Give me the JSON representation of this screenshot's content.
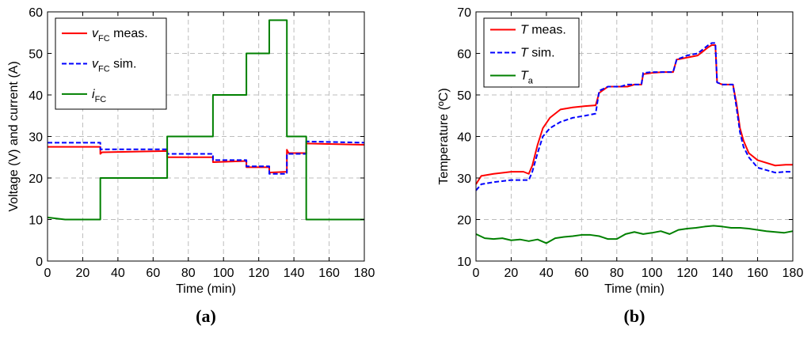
{
  "chart_data": [
    {
      "type": "line",
      "panel_label": "(a)",
      "xlabel": "Time (min)",
      "ylabel": "Voltage (V)  and current (A)",
      "xlim": [
        0,
        180
      ],
      "ylim": [
        0,
        60
      ],
      "xticks": [
        0,
        20,
        40,
        60,
        80,
        100,
        120,
        140,
        160,
        180
      ],
      "yticks": [
        0,
        10,
        20,
        30,
        40,
        50,
        60
      ],
      "grid": true,
      "legend_position": "top-left",
      "series": [
        {
          "name": "vFC meas.",
          "legend_main": "v",
          "legend_sub": "FC",
          "legend_suffix": " meas.",
          "italic_main": true,
          "color": "#ff0000",
          "dash": "solid",
          "x": [
            0,
            30,
            30,
            31,
            68,
            68,
            94,
            94,
            113,
            113,
            126,
            126,
            136,
            136,
            137,
            137,
            147,
            147,
            180
          ],
          "y": [
            27.5,
            27.5,
            25.8,
            26.2,
            26.5,
            25.0,
            25.0,
            23.8,
            24.1,
            22.6,
            22.6,
            21.3,
            21.5,
            26.8,
            26.0,
            26.0,
            26.0,
            28.3,
            28.0
          ]
        },
        {
          "name": "vFC sim.",
          "legend_main": "v",
          "legend_sub": "FC",
          "legend_suffix": " sim.",
          "italic_main": true,
          "color": "#0000ff",
          "dash": "dashed",
          "x": [
            0,
            30,
            30,
            68,
            68,
            94,
            94,
            113,
            113,
            126,
            126,
            136,
            136,
            147,
            147,
            180
          ],
          "y": [
            28.5,
            28.5,
            26.9,
            26.9,
            25.8,
            25.8,
            24.3,
            24.3,
            22.8,
            22.8,
            21.0,
            21.0,
            25.8,
            25.8,
            28.8,
            28.5
          ]
        },
        {
          "name": "iFC",
          "legend_main": "i",
          "legend_sub": "FC",
          "legend_suffix": "",
          "italic_main": true,
          "color": "#008000",
          "dash": "solid",
          "x": [
            0,
            10,
            30,
            30,
            68,
            68,
            94,
            94,
            113,
            113,
            126,
            126,
            136,
            136,
            147,
            147,
            180
          ],
          "y": [
            10.5,
            10,
            10,
            20,
            20,
            30,
            30,
            40,
            40,
            50,
            50,
            58,
            58,
            30,
            30,
            10,
            10
          ]
        }
      ]
    },
    {
      "type": "line",
      "panel_label": "(b)",
      "xlabel": "Time (min)",
      "ylabel": "Temperature (ºC)",
      "xlim": [
        0,
        180
      ],
      "ylim": [
        10,
        70
      ],
      "xticks": [
        0,
        20,
        40,
        60,
        80,
        100,
        120,
        140,
        160,
        180
      ],
      "yticks": [
        10,
        20,
        30,
        40,
        50,
        60,
        70
      ],
      "grid": true,
      "legend_position": "top-left",
      "series": [
        {
          "name": "T meas.",
          "legend_main": "T",
          "legend_sub": "",
          "legend_suffix": " meas.",
          "italic_main": true,
          "color": "#ff0000",
          "dash": "solid",
          "x": [
            0,
            3,
            10,
            20,
            27,
            30,
            32,
            35,
            38,
            42,
            48,
            55,
            62,
            68,
            70,
            75,
            82,
            86,
            90,
            94,
            95,
            100,
            106,
            112,
            114,
            120,
            126,
            132,
            134,
            136,
            137,
            140,
            144,
            146,
            148,
            150,
            152,
            155,
            160,
            170,
            176,
            180
          ],
          "y": [
            28.5,
            30.5,
            31,
            31.5,
            31.5,
            31,
            33,
            38,
            42,
            44.5,
            46.5,
            47,
            47.3,
            47.5,
            50.5,
            52,
            52,
            52,
            52.5,
            52.5,
            55,
            55.3,
            55.5,
            55.5,
            58.5,
            59,
            59.5,
            61.5,
            62,
            62,
            53,
            52.5,
            52.5,
            52.5,
            48,
            42,
            39,
            36,
            34.3,
            33,
            33.2,
            33.2
          ]
        },
        {
          "name": "T sim.",
          "legend_main": "T",
          "legend_sub": "",
          "legend_suffix": " sim.",
          "italic_main": true,
          "color": "#0000ff",
          "dash": "dashed",
          "x": [
            0,
            3,
            10,
            20,
            27,
            30,
            32,
            35,
            38,
            42,
            48,
            55,
            62,
            68,
            70,
            75,
            82,
            86,
            90,
            94,
            95,
            100,
            106,
            112,
            114,
            120,
            126,
            132,
            134,
            136,
            137,
            140,
            144,
            146,
            148,
            150,
            152,
            155,
            160,
            170,
            176,
            180
          ],
          "y": [
            27,
            28.5,
            29,
            29.5,
            29.5,
            29.5,
            31.5,
            36,
            40,
            42,
            43.5,
            44.5,
            45,
            45.5,
            51,
            52,
            52,
            52.5,
            52.5,
            52.5,
            55.3,
            55.5,
            55.5,
            55.5,
            58.5,
            59.5,
            60,
            62,
            62.5,
            62.5,
            53,
            52.5,
            52.5,
            52.5,
            47,
            41,
            37.5,
            35,
            32.5,
            31.3,
            31.5,
            31.5
          ]
        },
        {
          "name": "Ta",
          "legend_main": "T",
          "legend_sub": "a",
          "legend_suffix": "",
          "italic_main": true,
          "color": "#008000",
          "dash": "solid",
          "x": [
            0,
            5,
            10,
            15,
            20,
            25,
            30,
            35,
            40,
            45,
            50,
            55,
            60,
            65,
            70,
            75,
            80,
            85,
            90,
            95,
            100,
            105,
            110,
            115,
            120,
            125,
            130,
            135,
            140,
            145,
            150,
            155,
            160,
            165,
            170,
            175,
            180
          ],
          "y": [
            16.5,
            15.5,
            15.3,
            15.5,
            15.0,
            15.2,
            14.8,
            15.2,
            14.3,
            15.5,
            15.8,
            16.0,
            16.3,
            16.3,
            16.0,
            15.3,
            15.3,
            16.5,
            17.0,
            16.5,
            16.8,
            17.2,
            16.5,
            17.5,
            17.8,
            18.0,
            18.3,
            18.5,
            18.3,
            18.0,
            18.0,
            17.8,
            17.5,
            17.2,
            17.0,
            16.8,
            17.2
          ]
        }
      ]
    }
  ]
}
